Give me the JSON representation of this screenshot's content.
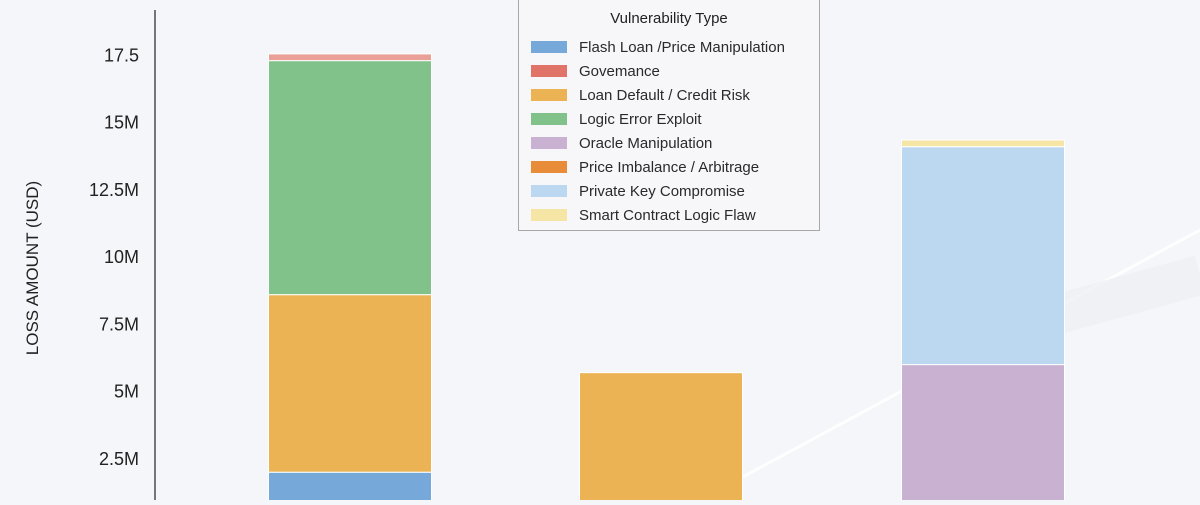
{
  "chart_data": {
    "type": "bar",
    "stacked": true,
    "ylabel": "LOSS AMOUNT (USD)",
    "ytick_labels": [
      "2.5M",
      "5M",
      "7.5M",
      "10M",
      "12.5M",
      "15M",
      "17.5"
    ],
    "ytick_values": [
      2.5,
      5,
      7.5,
      10,
      12.5,
      15,
      17.5
    ],
    "legend_title": "Vulnerability Type",
    "legend_placement": "top-center",
    "series": [
      {
        "name": "Flash Loan /Price Manipulation",
        "color": "#76a9da",
        "values": [
          2.0,
          0,
          0
        ]
      },
      {
        "name": "Govemance",
        "color": "#e07468",
        "values": [
          0,
          0,
          0
        ]
      },
      {
        "name": "Loan Default / Credit Risk",
        "color": "#ecb355",
        "values": [
          6.6,
          5.7,
          0
        ]
      },
      {
        "name": "Logic Error Exploit",
        "color": "#80c28a",
        "values": [
          8.7,
          0,
          0
        ]
      },
      {
        "name": "Oracle Manipulation",
        "color": "#c9b1d2",
        "values": [
          0,
          0,
          6.0
        ]
      },
      {
        "name": "Price Imbalance / Arbitrage",
        "color": "#e88c3a",
        "values": [
          0,
          0,
          0
        ]
      },
      {
        "name": "Private Key Compromise",
        "color": "#bcd8f0",
        "values": [
          0,
          0,
          8.1
        ]
      },
      {
        "name": "Smart Contract Logic Flaw",
        "color": "#f6e6a6",
        "values": [
          0,
          0,
          0.25
        ]
      }
    ],
    "extra_segments": [
      {
        "bar": 0,
        "color": "#eaa096",
        "value": 0.25
      }
    ]
  }
}
